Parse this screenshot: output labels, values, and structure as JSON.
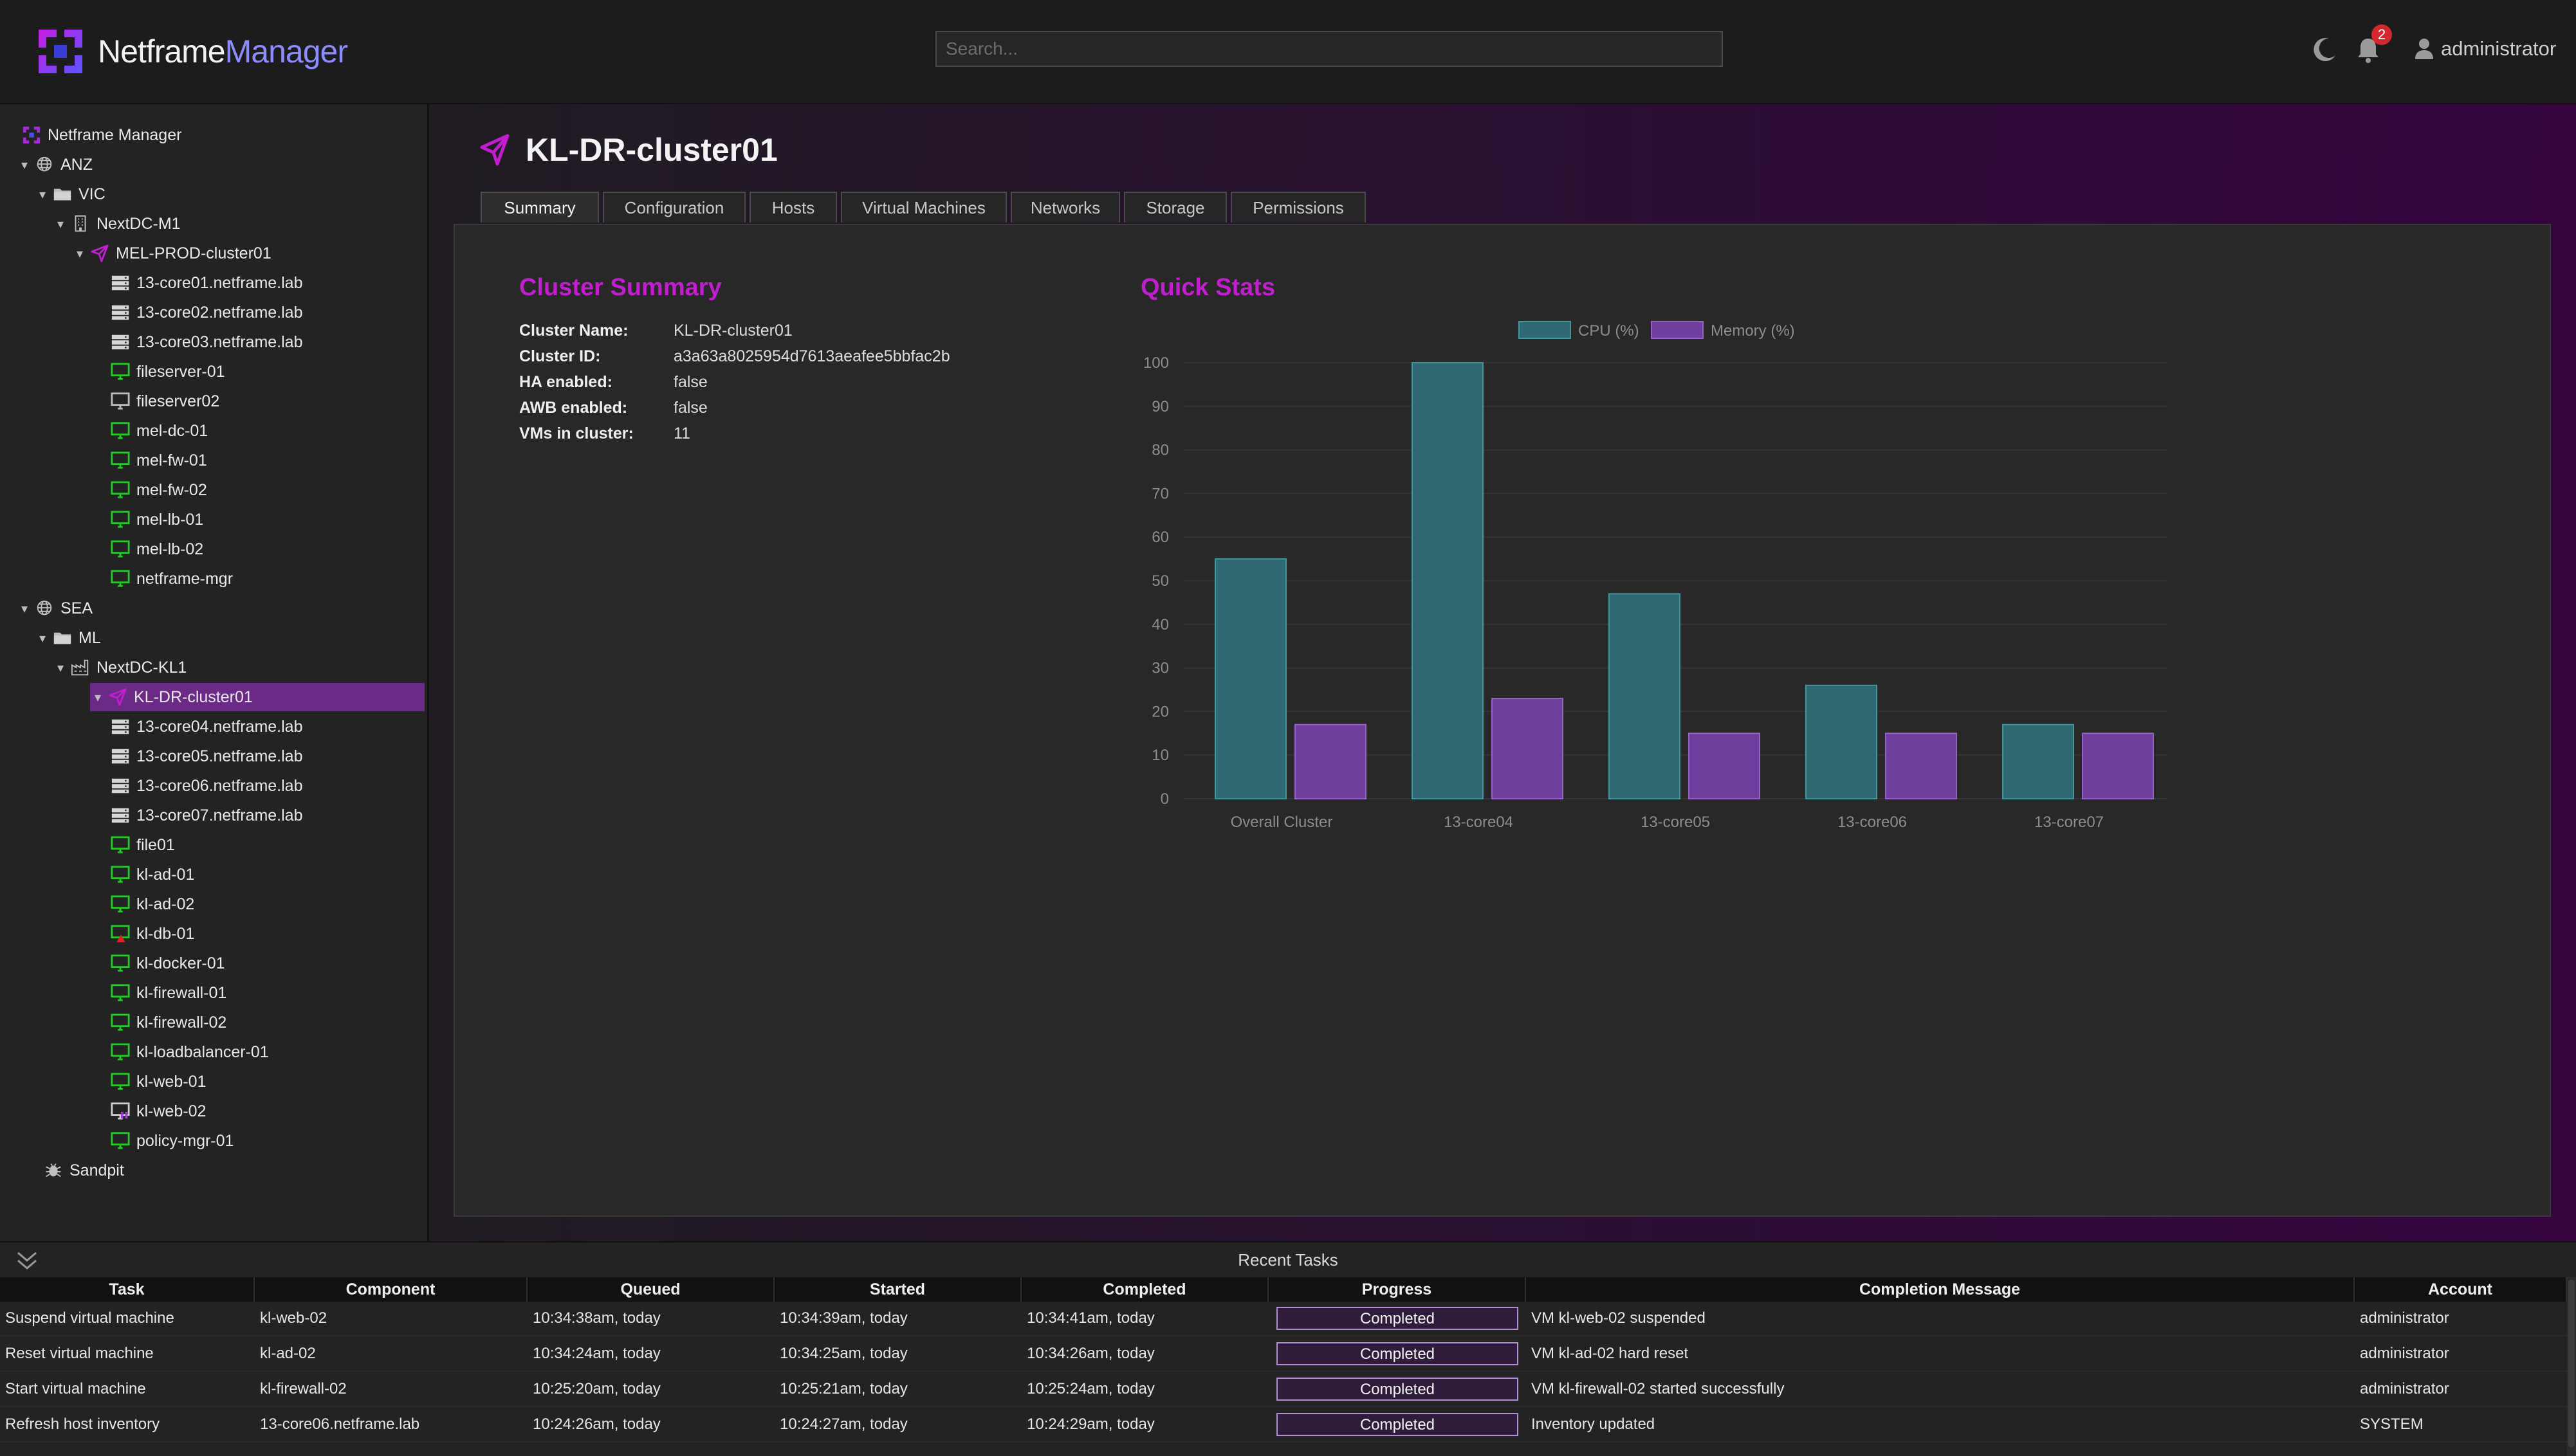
{
  "app": {
    "name_part1": "Netframe",
    "name_part2": "Manager",
    "search_placeholder": "Search...",
    "notification_count": "2",
    "user": "administrator"
  },
  "tree": [
    {
      "label": "Netframe Manager",
      "icon": "netframe-logo-icon",
      "caret": ""
    },
    {
      "label": "ANZ",
      "icon": "globe-icon",
      "caret": "down"
    },
    {
      "label": "VIC",
      "icon": "folder-icon",
      "caret": "down"
    },
    {
      "label": "NextDC-M1",
      "icon": "building-icon",
      "caret": "down"
    },
    {
      "label": "MEL-PROD-cluster01",
      "icon": "cluster-icon",
      "caret": "down"
    },
    {
      "label": "13-core01.netframe.lab",
      "icon": "server-icon",
      "caret": ""
    },
    {
      "label": "13-core02.netframe.lab",
      "icon": "server-icon",
      "caret": ""
    },
    {
      "label": "13-core03.netframe.lab",
      "icon": "server-icon",
      "caret": ""
    },
    {
      "label": "fileserver-01",
      "icon": "vm-on-icon",
      "caret": ""
    },
    {
      "label": "fileserver02",
      "icon": "vm-off-icon",
      "caret": ""
    },
    {
      "label": "mel-dc-01",
      "icon": "vm-on-icon",
      "caret": ""
    },
    {
      "label": "mel-fw-01",
      "icon": "vm-on-icon",
      "caret": ""
    },
    {
      "label": "mel-fw-02",
      "icon": "vm-on-icon",
      "caret": ""
    },
    {
      "label": "mel-lb-01",
      "icon": "vm-on-icon",
      "caret": ""
    },
    {
      "label": "mel-lb-02",
      "icon": "vm-on-icon",
      "caret": ""
    },
    {
      "label": "netframe-mgr",
      "icon": "vm-on-icon",
      "caret": ""
    },
    {
      "label": "SEA",
      "icon": "globe-icon",
      "caret": "down"
    },
    {
      "label": "ML",
      "icon": "folder-icon",
      "caret": "down"
    },
    {
      "label": "NextDC-KL1",
      "icon": "factory-icon",
      "caret": "down"
    },
    {
      "label": "KL-DR-cluster01",
      "icon": "cluster-icon",
      "caret": "down"
    },
    {
      "label": "13-core04.netframe.lab",
      "icon": "server-icon",
      "caret": ""
    },
    {
      "label": "13-core05.netframe.lab",
      "icon": "server-icon",
      "caret": ""
    },
    {
      "label": "13-core06.netframe.lab",
      "icon": "server-icon",
      "caret": ""
    },
    {
      "label": "13-core07.netframe.lab",
      "icon": "server-icon",
      "caret": ""
    },
    {
      "label": "file01",
      "icon": "vm-on-icon",
      "caret": ""
    },
    {
      "label": "kl-ad-01",
      "icon": "vm-on-icon",
      "caret": ""
    },
    {
      "label": "kl-ad-02",
      "icon": "vm-on-icon",
      "caret": ""
    },
    {
      "label": "kl-db-01",
      "icon": "vm-alert-icon",
      "caret": ""
    },
    {
      "label": "kl-docker-01",
      "icon": "vm-on-icon",
      "caret": ""
    },
    {
      "label": "kl-firewall-01",
      "icon": "vm-on-icon",
      "caret": ""
    },
    {
      "label": "kl-firewall-02",
      "icon": "vm-on-icon",
      "caret": ""
    },
    {
      "label": "kl-loadbalancer-01",
      "icon": "vm-on-icon",
      "caret": ""
    },
    {
      "label": "kl-web-01",
      "icon": "vm-on-icon",
      "caret": ""
    },
    {
      "label": "kl-web-02",
      "icon": "vm-suspended-icon",
      "caret": ""
    },
    {
      "label": "policy-mgr-01",
      "icon": "vm-on-icon",
      "caret": ""
    },
    {
      "label": "Sandpit",
      "icon": "bug-icon",
      "caret": ""
    }
  ],
  "main": {
    "title": "KL-DR-cluster01",
    "tabs": [
      "Summary",
      "Configuration",
      "Hosts",
      "Virtual Machines",
      "Networks",
      "Storage",
      "Permissions"
    ],
    "active_tab": "Summary",
    "summary_title": "Cluster Summary",
    "summary": [
      {
        "k": "Cluster Name:",
        "v": "KL-DR-cluster01"
      },
      {
        "k": "Cluster ID:",
        "v": "a3a63a8025954d7613aeafee5bbfac2b"
      },
      {
        "k": "HA enabled:",
        "v": "false"
      },
      {
        "k": "AWB enabled:",
        "v": "false"
      },
      {
        "k": "VMs in cluster:",
        "v": "11"
      }
    ],
    "stats_title": "Quick Stats"
  },
  "chart_data": {
    "type": "bar",
    "categories": [
      "Overall Cluster",
      "13-core04",
      "13-core05",
      "13-core06",
      "13-core07"
    ],
    "series": [
      {
        "name": "CPU (%)",
        "values": [
          55,
          100,
          47,
          26,
          17
        ],
        "color": "#2f6870"
      },
      {
        "name": "Memory (%)",
        "values": [
          17,
          23,
          15,
          15,
          15
        ],
        "color": "#6f3f9e"
      }
    ],
    "ylim": [
      0,
      100
    ],
    "yticks": [
      0,
      10,
      20,
      30,
      40,
      50,
      60,
      70,
      80,
      90,
      100
    ],
    "legend_position": "top",
    "title": "",
    "xlabel": "",
    "ylabel": ""
  },
  "tasks": {
    "title": "Recent Tasks",
    "columns": [
      "Task",
      "Component",
      "Queued",
      "Started",
      "Completed",
      "Progress",
      "Completion Message",
      "Account"
    ],
    "rows": [
      [
        "Suspend virtual machine",
        "kl-web-02",
        "10:34:38am, today",
        "10:34:39am, today",
        "10:34:41am, today",
        "Completed",
        "VM kl-web-02 suspended",
        "administrator"
      ],
      [
        "Reset virtual machine",
        "kl-ad-02",
        "10:34:24am, today",
        "10:34:25am, today",
        "10:34:26am, today",
        "Completed",
        "VM kl-ad-02 hard reset",
        "administrator"
      ],
      [
        "Start virtual machine",
        "kl-firewall-02",
        "10:25:20am, today",
        "10:25:21am, today",
        "10:25:24am, today",
        "Completed",
        "VM kl-firewall-02 started successfully",
        "administrator"
      ],
      [
        "Refresh host inventory",
        "13-core06.netframe.lab",
        "10:24:26am, today",
        "10:24:27am, today",
        "10:24:29am, today",
        "Completed",
        "Inventory updated",
        "SYSTEM"
      ]
    ]
  }
}
